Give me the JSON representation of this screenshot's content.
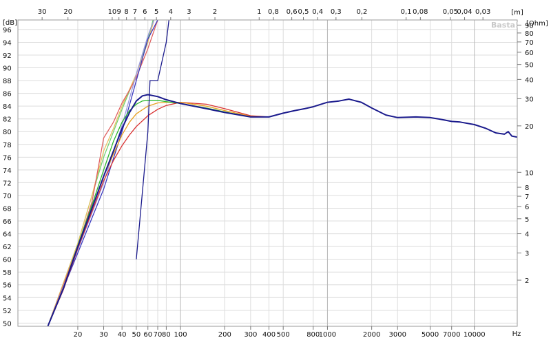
{
  "chart_data": {
    "type": "line",
    "watermark": "Basta!",
    "y_unit_left": "[dB]",
    "y_unit_right": "[Ohm]",
    "x_unit_bottom": "Hz",
    "x_unit_top": "[m]",
    "xscale": "log",
    "xlim": [
      9.2,
      20000
    ],
    "ylim": [
      49.5,
      97.5
    ],
    "grid": true,
    "legend": "none",
    "x_ticks": [
      {
        "value": 20,
        "label": "20"
      },
      {
        "value": 30,
        "label": "30"
      },
      {
        "value": 40,
        "label": "40"
      },
      {
        "value": 50,
        "label": "50"
      },
      {
        "value": 60,
        "label": "60"
      },
      {
        "value": 70,
        "label": "70"
      },
      {
        "value": 80,
        "label": "80"
      },
      {
        "value": 100,
        "label": "100"
      },
      {
        "value": 200,
        "label": "200"
      },
      {
        "value": 300,
        "label": "300"
      },
      {
        "value": 400,
        "label": "400"
      },
      {
        "value": 500,
        "label": "500"
      },
      {
        "value": 800,
        "label": "800"
      },
      {
        "value": 1000,
        "label": "1000"
      },
      {
        "value": 2000,
        "label": "2000"
      },
      {
        "value": 3000,
        "label": "3000"
      },
      {
        "value": 5000,
        "label": "5000"
      },
      {
        "value": 7000,
        "label": "7000"
      },
      {
        "value": 10000,
        "label": "10000"
      }
    ],
    "y_ticks": [
      50,
      52,
      54,
      56,
      58,
      60,
      62,
      64,
      66,
      68,
      70,
      72,
      74,
      76,
      78,
      80,
      82,
      84,
      86,
      88,
      90,
      92,
      94,
      96
    ],
    "top_ticks": [
      {
        "value": 30,
        "label": "30"
      },
      {
        "value": 20,
        "label": "20"
      },
      {
        "value": 10,
        "label": "10"
      },
      {
        "value": 9,
        "label": "9"
      },
      {
        "value": 8,
        "label": "8"
      },
      {
        "value": 7,
        "label": "7"
      },
      {
        "value": 6,
        "label": "6"
      },
      {
        "value": 5,
        "label": "5"
      },
      {
        "value": 4,
        "label": "4"
      },
      {
        "value": 3,
        "label": "3"
      },
      {
        "value": 2,
        "label": "2"
      },
      {
        "value": 1,
        "label": "1"
      },
      {
        "value": 0.8,
        "label": "0,8"
      },
      {
        "value": 0.6,
        "label": "0,6"
      },
      {
        "value": 0.5,
        "label": "0,5"
      },
      {
        "value": 0.4,
        "label": "0,4"
      },
      {
        "value": 0.3,
        "label": "0,3"
      },
      {
        "value": 0.2,
        "label": "0,2"
      },
      {
        "value": 0.1,
        "label": "0,1"
      },
      {
        "value": 0.08,
        "label": "0,08"
      },
      {
        "value": 0.05,
        "label": "0,05"
      },
      {
        "value": 0.04,
        "label": "0,04"
      },
      {
        "value": 0.03,
        "label": "0,03"
      }
    ],
    "ohm_ticks": [
      {
        "value": 90,
        "label": "90"
      },
      {
        "value": 80,
        "label": "80"
      },
      {
        "value": 70,
        "label": "70"
      },
      {
        "value": 60,
        "label": "60"
      },
      {
        "value": 50,
        "label": "50"
      },
      {
        "value": 40,
        "label": "40"
      },
      {
        "value": 30,
        "label": "30"
      },
      {
        "value": 20,
        "label": "20"
      },
      {
        "value": 10,
        "label": "10"
      },
      {
        "value": 8,
        "label": "8"
      },
      {
        "value": 7,
        "label": "7"
      },
      {
        "value": 6,
        "label": "6"
      },
      {
        "value": 5,
        "label": "5"
      },
      {
        "value": 4,
        "label": "4"
      },
      {
        "value": 3,
        "label": "3"
      },
      {
        "value": 2,
        "label": "2"
      }
    ],
    "series": [
      {
        "color": "#1a1a8c",
        "points": [
          [
            12.5,
            49.5
          ],
          [
            16,
            55.5
          ],
          [
            20,
            62
          ],
          [
            25,
            68
          ],
          [
            30,
            73
          ],
          [
            35,
            77
          ],
          [
            40,
            80.5
          ],
          [
            45,
            83
          ],
          [
            50,
            84.8
          ],
          [
            55,
            85.6
          ],
          [
            60,
            85.8
          ],
          [
            70,
            85.5
          ],
          [
            80,
            85
          ],
          [
            100,
            84.4
          ],
          [
            150,
            83.6
          ],
          [
            200,
            83
          ],
          [
            300,
            82.3
          ],
          [
            400,
            82.3
          ],
          [
            500,
            82.9
          ],
          [
            600,
            83.3
          ],
          [
            700,
            83.6
          ],
          [
            800,
            83.9
          ],
          [
            1000,
            84.6
          ],
          [
            1200,
            84.8
          ],
          [
            1400,
            85.1
          ],
          [
            1700,
            84.6
          ],
          [
            2000,
            83.7
          ],
          [
            2500,
            82.6
          ],
          [
            3000,
            82.2
          ],
          [
            4000,
            82.3
          ],
          [
            5000,
            82.2
          ],
          [
            6000,
            81.9
          ],
          [
            7000,
            81.6
          ],
          [
            8000,
            81.5
          ],
          [
            10000,
            81.1
          ],
          [
            12000,
            80.5
          ],
          [
            14000,
            79.8
          ],
          [
            16000,
            79.6
          ],
          [
            17000,
            80
          ],
          [
            18000,
            79.3
          ],
          [
            20000,
            79.1
          ]
        ]
      },
      {
        "color": "#2db82d",
        "points": [
          [
            12.5,
            49.5
          ],
          [
            16,
            55.6
          ],
          [
            20,
            62.2
          ],
          [
            25,
            68.5
          ],
          [
            30,
            74
          ],
          [
            35,
            78.5
          ],
          [
            40,
            81.5
          ],
          [
            45,
            83.3
          ],
          [
            50,
            84.3
          ],
          [
            55,
            84.8
          ],
          [
            60,
            84.9
          ],
          [
            70,
            84.9
          ],
          [
            80,
            84.7
          ],
          [
            100,
            84.4
          ],
          [
            150,
            83.7
          ],
          [
            200,
            83.1
          ],
          [
            300,
            82.3
          ],
          [
            400,
            82.3
          ]
        ]
      },
      {
        "color": "#e8a020",
        "points": [
          [
            12.5,
            49.5
          ],
          [
            16,
            55.5
          ],
          [
            20,
            62
          ],
          [
            25,
            68
          ],
          [
            30,
            73
          ],
          [
            35,
            76.5
          ],
          [
            40,
            79.5
          ],
          [
            45,
            81.5
          ],
          [
            50,
            82.8
          ],
          [
            60,
            84
          ],
          [
            70,
            84.5
          ],
          [
            80,
            84.6
          ],
          [
            100,
            84.6
          ],
          [
            150,
            84
          ],
          [
            200,
            83.3
          ],
          [
            300,
            82.4
          ],
          [
            400,
            82.3
          ]
        ]
      },
      {
        "color": "#d83030",
        "points": [
          [
            12.5,
            49.5
          ],
          [
            16,
            55.3
          ],
          [
            20,
            61.7
          ],
          [
            25,
            67.5
          ],
          [
            30,
            72.3
          ],
          [
            35,
            75.5
          ],
          [
            40,
            77.8
          ],
          [
            45,
            79.5
          ],
          [
            50,
            80.8
          ],
          [
            60,
            82.5
          ],
          [
            70,
            83.5
          ],
          [
            80,
            84.1
          ],
          [
            100,
            84.6
          ],
          [
            150,
            84.3
          ],
          [
            200,
            83.6
          ],
          [
            300,
            82.5
          ],
          [
            400,
            82.3
          ]
        ]
      },
      {
        "color": "#3a3ac0",
        "points": [
          [
            12.5,
            49.5
          ],
          [
            20,
            61
          ],
          [
            30,
            71
          ],
          [
            40,
            80
          ],
          [
            50,
            88
          ],
          [
            60,
            94.5
          ],
          [
            70,
            97.5
          ]
        ]
      },
      {
        "color": "#9a9ae0",
        "points": [
          [
            12.5,
            49.5
          ],
          [
            20,
            61.5
          ],
          [
            30,
            72
          ],
          [
            40,
            81
          ],
          [
            50,
            89
          ],
          [
            60,
            95
          ],
          [
            66,
            97.5
          ]
        ]
      },
      {
        "color": "#e06060",
        "points": [
          [
            12.5,
            49.5
          ],
          [
            20,
            62
          ],
          [
            25,
            69
          ],
          [
            30,
            79
          ],
          [
            35,
            81.5
          ],
          [
            40,
            84.5
          ],
          [
            45,
            86.5
          ],
          [
            50,
            88.5
          ],
          [
            60,
            93
          ],
          [
            70,
            97.5
          ]
        ]
      },
      {
        "color": "#e8c060",
        "points": [
          [
            12.5,
            49.5
          ],
          [
            20,
            62.5
          ],
          [
            25,
            70
          ],
          [
            30,
            77
          ],
          [
            35,
            80.5
          ],
          [
            40,
            84
          ],
          [
            50,
            89
          ],
          [
            60,
            94
          ],
          [
            66,
            97.5
          ]
        ]
      },
      {
        "color": "#70d070",
        "points": [
          [
            12.5,
            49.5
          ],
          [
            20,
            62.5
          ],
          [
            25,
            70
          ],
          [
            30,
            76
          ],
          [
            35,
            80
          ],
          [
            40,
            83.5
          ],
          [
            50,
            89
          ],
          [
            60,
            94.5
          ],
          [
            65,
            97.5
          ]
        ]
      }
    ],
    "impedance_series": {
      "color": "#1a1a8c",
      "points": [
        [
          50,
          60
        ],
        [
          60,
          80
        ],
        [
          62,
          88
        ],
        [
          70,
          88
        ],
        [
          80,
          94
        ],
        [
          86,
          100
        ]
      ]
    }
  }
}
